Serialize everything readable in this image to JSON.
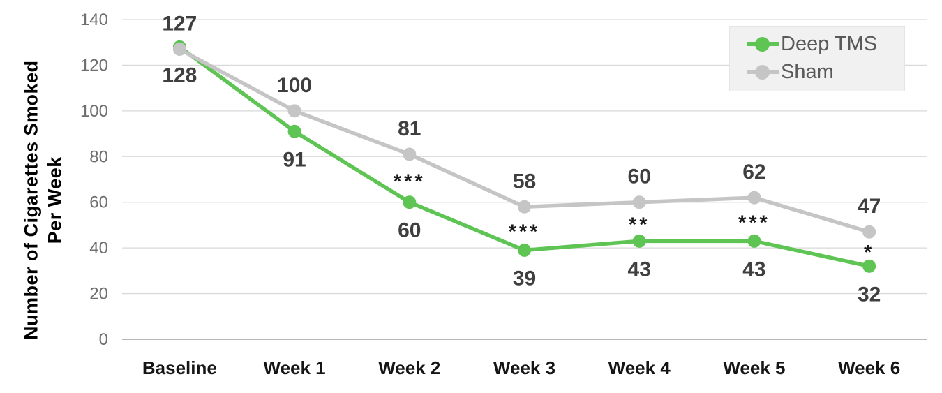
{
  "chart_data": {
    "type": "line",
    "categories": [
      "Baseline",
      "Week 1",
      "Week 2",
      "Week 3",
      "Week 4",
      "Week 5",
      "Week 6"
    ],
    "series": [
      {
        "name": "Deep TMS",
        "color": "#5ec453",
        "values": [
          128,
          91,
          60,
          39,
          43,
          43,
          32
        ],
        "label_position": "below"
      },
      {
        "name": "Sham",
        "color": "#c5c5c5",
        "values": [
          127,
          100,
          81,
          58,
          60,
          62,
          47
        ],
        "label_position": "above"
      }
    ],
    "significance_by_category": [
      "",
      "",
      "***",
      "***",
      "**",
      "***",
      "*"
    ],
    "ylabel_lines": [
      "Number of Cigarettes Smoked",
      "Per Week"
    ],
    "ylim": [
      0,
      140
    ],
    "ytick_step": 20,
    "ytick_labels": [
      "0",
      "20",
      "40",
      "60",
      "80",
      "100",
      "120",
      "140"
    ],
    "grid": true,
    "legend_position": "top-right",
    "colors": {
      "data_label": "#3f3f3f",
      "tick_label": "#6e6e6e",
      "category_label": "#151515",
      "gridline": "#d9d9d9",
      "axis_line": "#b7b7b7",
      "legend_bg": "#f1f1f1",
      "legend_text": "#595959",
      "significance": "#1a1a1a"
    }
  }
}
